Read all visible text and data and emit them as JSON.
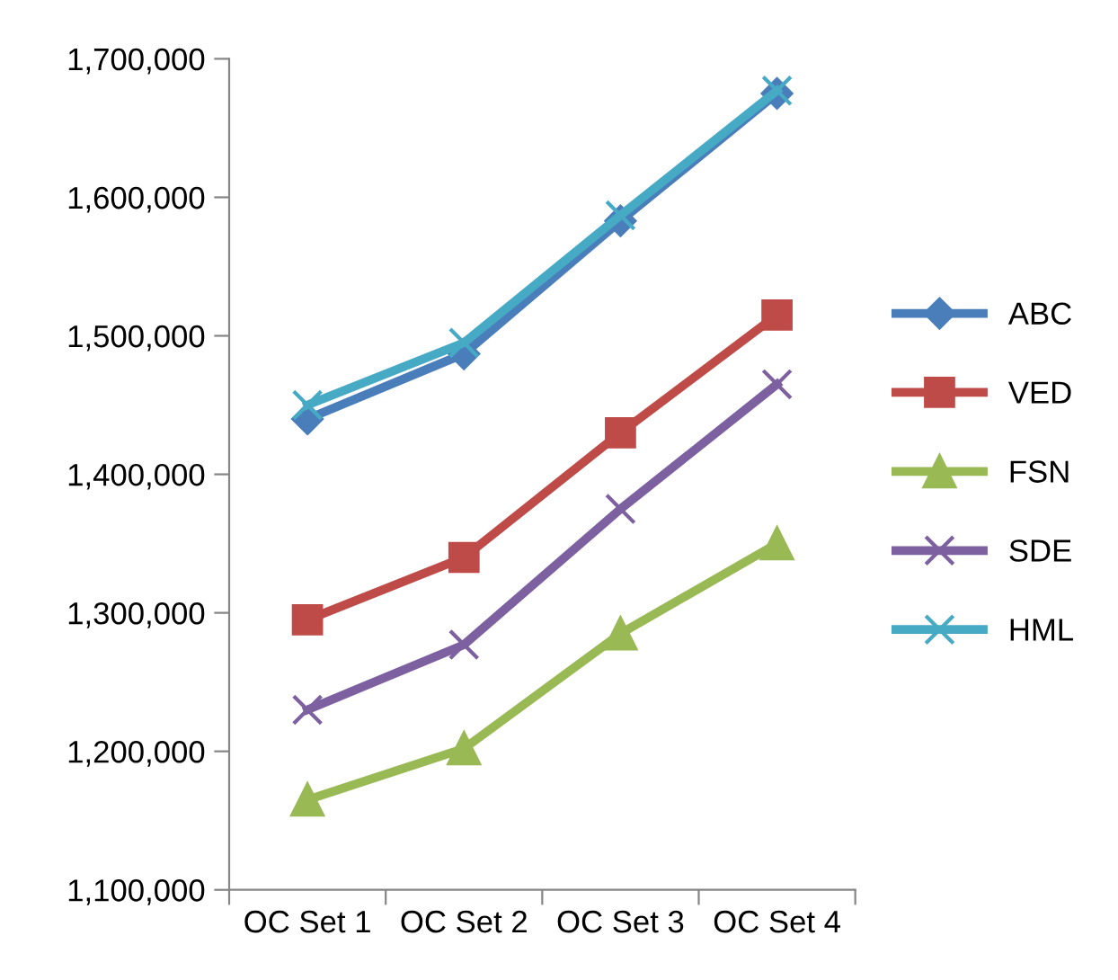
{
  "chart_data": {
    "type": "line",
    "categories": [
      "OC Set 1",
      "OC Set 2",
      "OC Set 3",
      "OC Set 4"
    ],
    "series": [
      {
        "name": "ABC",
        "color": "#4a7ebb",
        "marker": "diamond",
        "values": [
          1440000,
          1487000,
          1583000,
          1675000
        ]
      },
      {
        "name": "VED",
        "color": "#be4b48",
        "marker": "square",
        "values": [
          1295000,
          1340000,
          1430000,
          1515000
        ]
      },
      {
        "name": "FSN",
        "color": "#98b954",
        "marker": "triangle",
        "values": [
          1165000,
          1202000,
          1285000,
          1350000
        ]
      },
      {
        "name": "SDE",
        "color": "#7d60a0",
        "marker": "cross",
        "values": [
          1230000,
          1277000,
          1375000,
          1465000
        ]
      },
      {
        "name": "HML",
        "color": "#46aac5",
        "marker": "cross",
        "values": [
          1450000,
          1495000,
          1587000,
          1677000
        ]
      }
    ],
    "ylim": [
      1100000,
      1700000
    ],
    "yticks": [
      {
        "value": 1100000,
        "label": "1,100,000"
      },
      {
        "value": 1200000,
        "label": "1,200,000"
      },
      {
        "value": 1300000,
        "label": "1,300,000"
      },
      {
        "value": 1400000,
        "label": "1,400,000"
      },
      {
        "value": 1500000,
        "label": "1,500,000"
      },
      {
        "value": 1600000,
        "label": "1,600,000"
      },
      {
        "value": 1700000,
        "label": "1,700,000"
      }
    ],
    "grid": false,
    "legend": "right",
    "line_style": "solid"
  }
}
